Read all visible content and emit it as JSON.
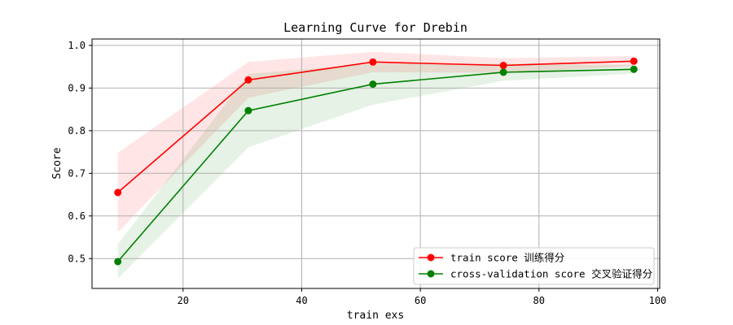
{
  "chart_data": {
    "type": "line",
    "title": "Learning Curve for Drebin",
    "xlabel": "train exs",
    "ylabel": "Score",
    "xlim": [
      4.65,
      100.35
    ],
    "ylim": [
      0.43,
      1.015
    ],
    "xticks": [
      20,
      40,
      60,
      80,
      100
    ],
    "yticks": [
      0.5,
      0.6,
      0.7,
      0.8,
      0.9,
      1.0
    ],
    "ytick_labels": [
      "0.5",
      "0.6",
      "0.7",
      "0.8",
      "0.9",
      "1.0"
    ],
    "grid": true,
    "legend_position": "lower-right",
    "x": [
      9,
      31,
      52,
      74,
      96
    ],
    "series": [
      {
        "name": "train score 训练得分",
        "color": "#ff0000",
        "fill_color": "#ff0000",
        "values": [
          0.655,
          0.919,
          0.961,
          0.953,
          0.963
        ],
        "lower": [
          0.562,
          0.877,
          0.937,
          0.936,
          0.951
        ],
        "upper": [
          0.748,
          0.961,
          0.985,
          0.97,
          0.975
        ]
      },
      {
        "name": "cross-validation score 交叉验证得分",
        "color": "#008000",
        "fill_color": "#008000",
        "values": [
          0.493,
          0.847,
          0.909,
          0.937,
          0.944
        ],
        "lower": [
          0.453,
          0.761,
          0.861,
          0.917,
          0.934
        ],
        "upper": [
          0.533,
          0.933,
          0.957,
          0.957,
          0.954
        ]
      }
    ]
  }
}
